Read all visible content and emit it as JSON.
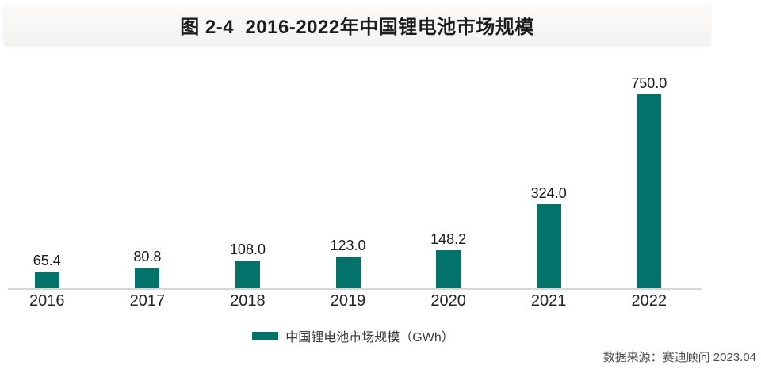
{
  "title": "图 2-4  2016-2022年中国锂电池市场规模",
  "chart_data": {
    "type": "bar",
    "categories": [
      "2016",
      "2017",
      "2018",
      "2019",
      "2020",
      "2021",
      "2022"
    ],
    "values": [
      65.4,
      80.8,
      108.0,
      123.0,
      148.2,
      324.0,
      750.0
    ],
    "value_labels": [
      "65.4",
      "80.8",
      "108.0",
      "123.0",
      "148.2",
      "324.0",
      "750.0"
    ],
    "title": "图 2-4  2016-2022年中国锂电池市场规模",
    "xlabel": "",
    "ylabel": "",
    "ylim": [
      0,
      750
    ],
    "grid": false,
    "legend_position": "bottom",
    "series": [
      {
        "name": "中国锂电池市场规模（GWh）",
        "color": "#03726a"
      }
    ]
  },
  "legend": {
    "label": "中国锂电池市场规模（GWh）",
    "swatch_color": "#03726a"
  },
  "source_note": "数据来源：赛迪顾问 2023.04",
  "colors": {
    "bar": "#03726a",
    "axis_line": "#d8d6d3",
    "title_band_bg": "#f7f6f4",
    "title_text": "#1c1c1c",
    "label_text": "#1b1b1b",
    "source_text": "#4c4c4c"
  }
}
